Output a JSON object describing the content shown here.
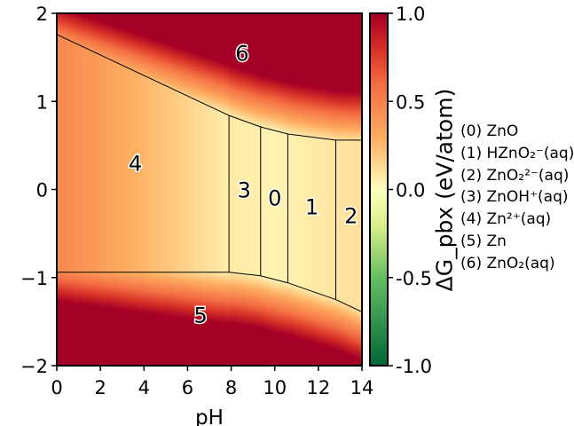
{
  "chart_data": {
    "type": "heatmap",
    "xlabel": "pH",
    "ylabel": "",
    "xlim": [
      0,
      14
    ],
    "ylim": [
      -2,
      2
    ],
    "xticks": [
      "0",
      "2",
      "4",
      "6",
      "8",
      "10",
      "12",
      "14"
    ],
    "yticks": [
      "2",
      "1",
      "0",
      "−1",
      "−2"
    ],
    "colormap": "RdYlGn_r",
    "colorbar": {
      "label": "ΔG_pbx (eV/atom)",
      "range": [
        -1.0,
        1.0
      ],
      "ticks": [
        "1.0",
        "0.5",
        "0.0",
        "-0.5",
        "-1.0"
      ]
    },
    "boundaries": [
      {
        "points": [
          [
            0,
            1.76
          ],
          [
            7.9,
            0.84
          ],
          [
            9.35,
            0.71
          ],
          [
            10.6,
            0.63
          ],
          [
            12.8,
            0.56
          ],
          [
            14,
            0.56
          ]
        ]
      },
      {
        "points": [
          [
            0,
            -0.94
          ],
          [
            7.9,
            -0.94
          ],
          [
            9.35,
            -0.98
          ],
          [
            10.6,
            -1.06
          ],
          [
            12.8,
            -1.25
          ],
          [
            14,
            -1.39
          ]
        ]
      },
      {
        "points": [
          [
            7.9,
            0.84
          ],
          [
            7.9,
            -0.94
          ]
        ]
      },
      {
        "points": [
          [
            9.35,
            0.71
          ],
          [
            9.35,
            -0.98
          ]
        ]
      },
      {
        "points": [
          [
            10.6,
            0.63
          ],
          [
            10.6,
            -1.06
          ]
        ]
      },
      {
        "points": [
          [
            12.8,
            0.56
          ],
          [
            12.8,
            -1.25
          ]
        ]
      }
    ],
    "region_labels": [
      {
        "text": "6",
        "x": 8.5,
        "y": 1.55
      },
      {
        "text": "4",
        "x": 3.6,
        "y": 0.3
      },
      {
        "text": "3",
        "x": 8.6,
        "y": 0.0
      },
      {
        "text": "0",
        "x": 10.0,
        "y": -0.09
      },
      {
        "text": "1",
        "x": 11.7,
        "y": -0.19
      },
      {
        "text": "2",
        "x": 13.5,
        "y": -0.29
      },
      {
        "text": "5",
        "x": 6.6,
        "y": -1.42
      }
    ],
    "legend": [
      "(0)  ZnO",
      "(1)  HZnO₂⁻(aq)",
      "(2)  ZnO₂²⁻(aq)",
      "(3)  ZnOH⁺(aq)",
      "(4)  Zn²⁺(aq)",
      "(5)  Zn",
      "(6)  ZnO₂(aq)"
    ]
  }
}
